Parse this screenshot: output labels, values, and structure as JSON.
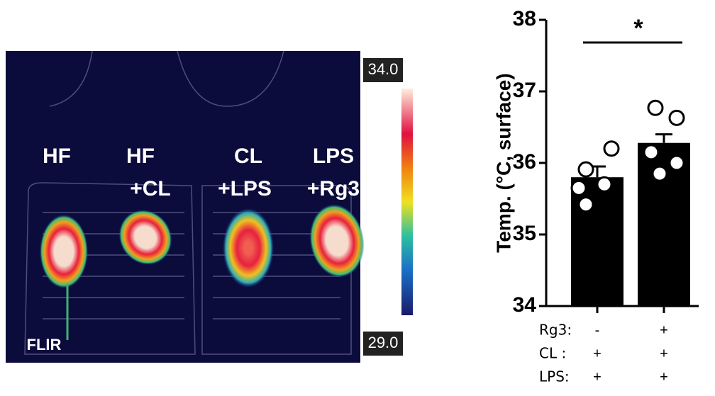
{
  "image": {
    "labels": [
      "HF",
      "HF",
      "+CL",
      "CL",
      "+LPS",
      "LPS",
      "+Rg3"
    ],
    "scale_max": "34.0",
    "scale_min": "29.0",
    "brand": "FLIR"
  },
  "chart_data": {
    "type": "bar",
    "ylabel": "Temp. (°C, surface)",
    "categories": [
      null,
      null
    ],
    "values": [
      35.8,
      36.28
    ],
    "errors": [
      0.15,
      0.12
    ],
    "points": [
      [
        35.91,
        36.2,
        35.65,
        35.42,
        35.7
      ],
      [
        36.77,
        36.63,
        36.15,
        36.0,
        35.85
      ]
    ],
    "color": "#000000",
    "ylim": [
      34,
      38
    ],
    "yticks": [
      34,
      35,
      36,
      37,
      38
    ],
    "annotation": "*",
    "x_table": [
      {
        "label": "Rg3:",
        "cells": [
          "-",
          "+"
        ]
      },
      {
        "label": "CL :",
        "cells": [
          "+",
          "+"
        ]
      },
      {
        "label": "LPS:",
        "cells": [
          "+",
          "+"
        ]
      }
    ]
  }
}
